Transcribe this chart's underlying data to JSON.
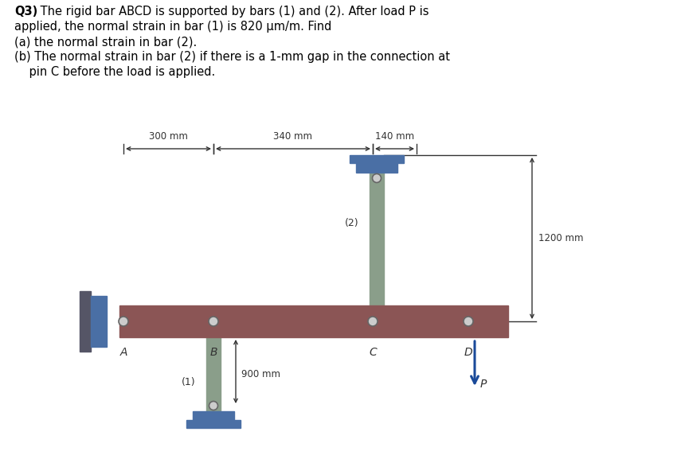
{
  "bg_color": "#ffffff",
  "bar_color": "#8B5555",
  "bar_vert_color": "#8A9E8A",
  "support_color": "#4A6FA5",
  "support_dark": "#3A3A3A",
  "dim_color": "#333333",
  "arrow_color": "#1a4a99",
  "pin_color": "#cccccc",
  "pin_edge": "#666666",
  "label_A": "A",
  "label_B": "B",
  "label_C": "C",
  "label_D": "D",
  "label_1": "(1)",
  "label_2": "(2)",
  "label_P": "P",
  "dim_300": "300 mm",
  "dim_340": "340 mm",
  "dim_140": "140 mm",
  "dim_1200": "1200 mm",
  "dim_900": "900 mm",
  "q3_bold": "Q3)",
  "q3_rest_line1": " The rigid bar ABCD is supported by bars (1) and (2). After load P is",
  "q3_line2": "applied, the normal strain in bar (1) is 820 μm/m. Find",
  "q3_line3": "(a) the normal strain in bar (2).",
  "q3_line4": "(b) The normal strain in bar (2) if there is a 1-mm gap in the connection at",
  "q3_line5": "    pin C before the load is applied."
}
